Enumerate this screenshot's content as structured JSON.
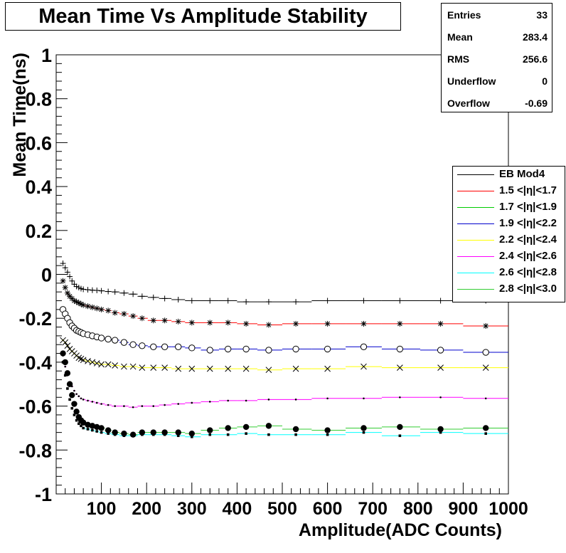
{
  "title": "Mean Time Vs Amplitude Stability",
  "stats": {
    "rows": [
      {
        "label": "Entries",
        "value": "33"
      },
      {
        "label": "Mean",
        "value": "283.4"
      },
      {
        "label": "RMS",
        "value": "256.6"
      },
      {
        "label": "Underflow",
        "value": "0"
      },
      {
        "label": "Overflow",
        "value": "-0.69"
      }
    ]
  },
  "legend": {
    "entries": [
      {
        "label": "EB Mod4",
        "color": "#000000"
      },
      {
        "label": "1.5 <|η|<1.7",
        "color": "#ff0000"
      },
      {
        "label": "1.7 <|η|<1.9",
        "color": "#00cc00"
      },
      {
        "label": "1.9 <|η|<2.2",
        "color": "#0000cc"
      },
      {
        "label": "2.2 <|η|<2.4",
        "color": "#ffff00"
      },
      {
        "label": "2.4 <|η|<2.6",
        "color": "#ff00ff"
      },
      {
        "label": "2.6 <|η|<2.8",
        "color": "#00ffff"
      },
      {
        "label": "2.8 <|η|<3.0",
        "color": "#33cc33"
      }
    ]
  },
  "chart_data": {
    "type": "scatter",
    "title": "Mean Time Vs Amplitude Stability",
    "xlabel": "Amplitude(ADC Counts)",
    "ylabel": "Mean Time(ns)",
    "xlim": [
      0,
      1000
    ],
    "ylim": [
      -1,
      1
    ],
    "x_ticks": [
      100,
      200,
      300,
      400,
      500,
      600,
      700,
      800,
      900,
      1000
    ],
    "y_ticks": [
      -1,
      -0.8,
      -0.6,
      -0.4,
      -0.2,
      0,
      0.2,
      0.4,
      0.6,
      0.8,
      1
    ],
    "y_tick_labels": [
      "-1",
      "-0.8",
      "-0.6",
      "-0.4",
      "-0.2",
      "0",
      "0.2",
      "0.4",
      "0.6",
      "0.8",
      "1"
    ],
    "x_tick_labels": [
      "100",
      "200",
      "300",
      "400",
      "500",
      "600",
      "700",
      "800",
      "900",
      "1000"
    ],
    "grid": false,
    "legend_position": "right",
    "series": [
      {
        "name": "EB Mod4",
        "color": "#000000",
        "marker": "plus",
        "x": [
          15,
          20,
          25,
          30,
          35,
          40,
          45,
          50,
          55,
          60,
          70,
          80,
          90,
          100,
          115,
          130,
          150,
          170,
          190,
          215,
          240,
          270,
          300,
          340,
          380,
          420,
          470,
          530,
          600,
          680,
          760,
          850,
          950
        ],
        "y": [
          0.05,
          0.03,
          0.01,
          -0.01,
          -0.03,
          -0.045,
          -0.055,
          -0.06,
          -0.065,
          -0.068,
          -0.07,
          -0.072,
          -0.073,
          -0.075,
          -0.078,
          -0.08,
          -0.085,
          -0.09,
          -0.1,
          -0.105,
          -0.11,
          -0.115,
          -0.12,
          -0.12,
          -0.12,
          -0.125,
          -0.125,
          -0.125,
          -0.12,
          -0.12,
          -0.12,
          -0.12,
          -0.12
        ]
      },
      {
        "name": "1.5 <|η|<1.7",
        "color": "#ff0000",
        "marker": "star",
        "x": [
          15,
          20,
          25,
          30,
          35,
          40,
          45,
          50,
          55,
          60,
          70,
          80,
          90,
          100,
          115,
          130,
          150,
          170,
          190,
          215,
          240,
          270,
          300,
          340,
          380,
          420,
          470,
          530,
          600,
          680,
          760,
          850,
          950
        ],
        "y": [
          -0.03,
          -0.06,
          -0.085,
          -0.1,
          -0.11,
          -0.12,
          -0.125,
          -0.13,
          -0.135,
          -0.14,
          -0.145,
          -0.15,
          -0.155,
          -0.16,
          -0.165,
          -0.175,
          -0.18,
          -0.19,
          -0.2,
          -0.21,
          -0.21,
          -0.215,
          -0.22,
          -0.22,
          -0.22,
          -0.225,
          -0.23,
          -0.225,
          -0.225,
          -0.225,
          -0.225,
          -0.225,
          -0.235
        ]
      },
      {
        "name": "1.9 <|η|<2.2",
        "color": "#0000cc",
        "marker": "open-circle",
        "x": [
          15,
          20,
          25,
          30,
          35,
          40,
          45,
          50,
          55,
          60,
          70,
          80,
          90,
          100,
          115,
          130,
          150,
          170,
          190,
          215,
          240,
          270,
          300,
          340,
          380,
          420,
          470,
          530,
          600,
          680,
          760,
          850,
          950
        ],
        "y": [
          -0.16,
          -0.18,
          -0.2,
          -0.22,
          -0.235,
          -0.245,
          -0.255,
          -0.26,
          -0.265,
          -0.27,
          -0.275,
          -0.28,
          -0.285,
          -0.29,
          -0.295,
          -0.3,
          -0.31,
          -0.32,
          -0.325,
          -0.33,
          -0.33,
          -0.33,
          -0.335,
          -0.345,
          -0.34,
          -0.34,
          -0.345,
          -0.34,
          -0.34,
          -0.33,
          -0.34,
          -0.345,
          -0.355
        ]
      },
      {
        "name": "2.2 <|η|<2.4",
        "color": "#ffff00",
        "marker": "cross",
        "x": [
          15,
          20,
          25,
          30,
          35,
          40,
          45,
          50,
          55,
          60,
          70,
          80,
          90,
          100,
          115,
          130,
          150,
          170,
          190,
          215,
          240,
          270,
          300,
          340,
          380,
          420,
          470,
          530,
          600,
          680,
          760,
          850,
          950
        ],
        "y": [
          -0.3,
          -0.31,
          -0.325,
          -0.34,
          -0.35,
          -0.36,
          -0.37,
          -0.38,
          -0.385,
          -0.39,
          -0.395,
          -0.4,
          -0.405,
          -0.41,
          -0.41,
          -0.415,
          -0.42,
          -0.42,
          -0.425,
          -0.425,
          -0.425,
          -0.43,
          -0.43,
          -0.43,
          -0.43,
          -0.43,
          -0.435,
          -0.43,
          -0.43,
          -0.42,
          -0.425,
          -0.425,
          -0.425
        ]
      },
      {
        "name": "2.4 <|η|<2.6",
        "color": "#ff00ff",
        "marker": "small-dot",
        "x": [
          15,
          20,
          25,
          30,
          35,
          40,
          45,
          50,
          55,
          60,
          70,
          80,
          90,
          100,
          115,
          130,
          150,
          170,
          190,
          215,
          240,
          270,
          300,
          340,
          380,
          420,
          470,
          530,
          600,
          680,
          760,
          850,
          950
        ],
        "y": [
          -0.37,
          -0.42,
          -0.46,
          -0.49,
          -0.51,
          -0.53,
          -0.545,
          -0.555,
          -0.565,
          -0.57,
          -0.575,
          -0.58,
          -0.585,
          -0.59,
          -0.595,
          -0.6,
          -0.6,
          -0.605,
          -0.6,
          -0.6,
          -0.595,
          -0.59,
          -0.585,
          -0.58,
          -0.575,
          -0.575,
          -0.57,
          -0.57,
          -0.565,
          -0.565,
          -0.56,
          -0.56,
          -0.565
        ]
      },
      {
        "name": "2.6 <|η|<2.8",
        "color": "#00ffff",
        "marker": "filled-square",
        "x": [
          15,
          20,
          25,
          30,
          35,
          40,
          45,
          50,
          55,
          60,
          70,
          80,
          90,
          100,
          115,
          130,
          150,
          170,
          190,
          215,
          240,
          270,
          300,
          340,
          380,
          420,
          470,
          530,
          600,
          680,
          760,
          850,
          950
        ],
        "y": [
          -0.4,
          -0.46,
          -0.52,
          -0.57,
          -0.61,
          -0.64,
          -0.665,
          -0.68,
          -0.69,
          -0.7,
          -0.705,
          -0.71,
          -0.715,
          -0.72,
          -0.725,
          -0.73,
          -0.735,
          -0.735,
          -0.73,
          -0.73,
          -0.73,
          -0.735,
          -0.74,
          -0.73,
          -0.73,
          -0.725,
          -0.73,
          -0.73,
          -0.73,
          -0.72,
          -0.735,
          -0.72,
          -0.725
        ]
      },
      {
        "name": "2.8 <|η|<3.0",
        "color": "#33cc33",
        "marker": "filled-circle",
        "x": [
          15,
          20,
          25,
          30,
          35,
          40,
          45,
          50,
          55,
          60,
          70,
          80,
          90,
          100,
          115,
          130,
          150,
          170,
          190,
          215,
          240,
          270,
          300,
          340,
          380,
          420,
          470,
          530,
          600,
          680,
          760,
          850,
          950
        ],
        "y": [
          -0.36,
          -0.4,
          -0.45,
          -0.5,
          -0.55,
          -0.59,
          -0.625,
          -0.65,
          -0.665,
          -0.675,
          -0.685,
          -0.69,
          -0.695,
          -0.7,
          -0.71,
          -0.72,
          -0.725,
          -0.73,
          -0.72,
          -0.72,
          -0.72,
          -0.72,
          -0.725,
          -0.71,
          -0.7,
          -0.695,
          -0.69,
          -0.705,
          -0.71,
          -0.7,
          -0.695,
          -0.705,
          -0.7
        ]
      }
    ]
  }
}
